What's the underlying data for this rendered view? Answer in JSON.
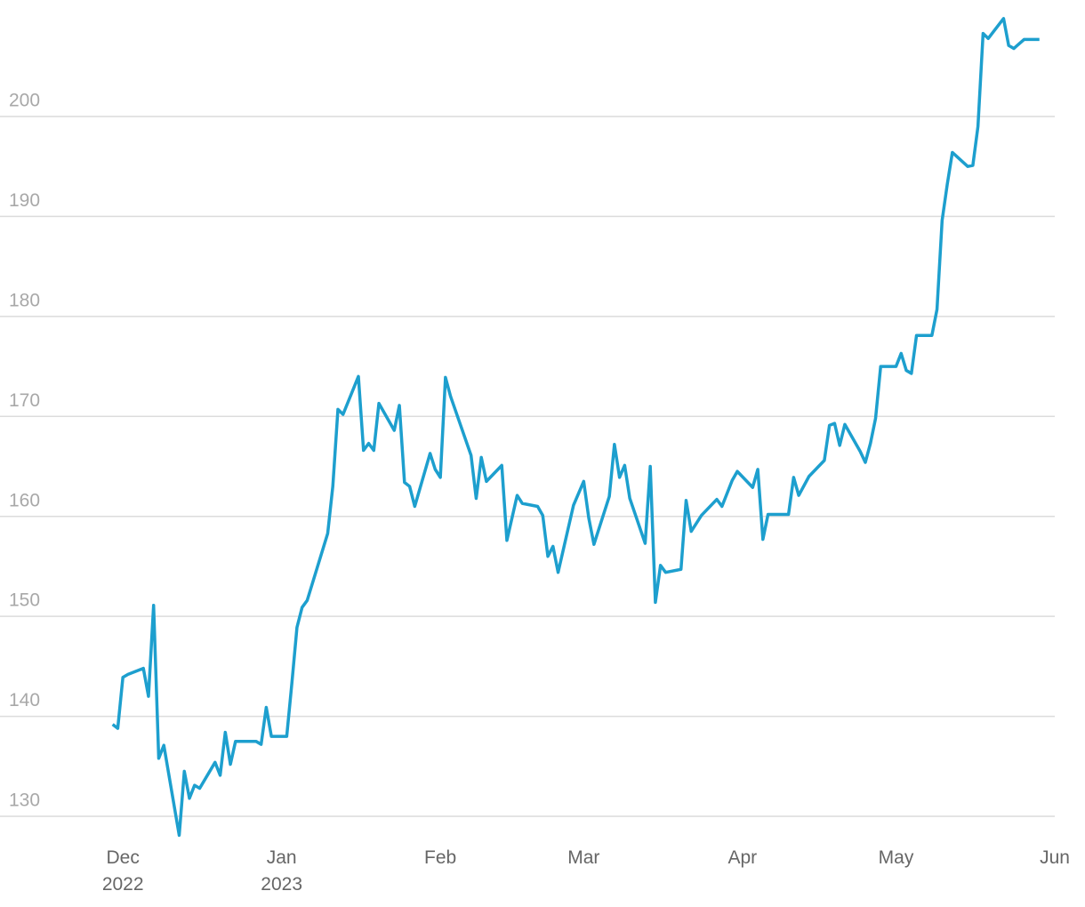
{
  "chart_data": {
    "type": "line",
    "x": [
      "2022-11-29",
      "2022-11-30",
      "2022-12-01",
      "2022-12-02",
      "2022-12-05",
      "2022-12-06",
      "2022-12-07",
      "2022-12-08",
      "2022-12-09",
      "2022-12-12",
      "2022-12-13",
      "2022-12-14",
      "2022-12-15",
      "2022-12-16",
      "2022-12-19",
      "2022-12-20",
      "2022-12-21",
      "2022-12-22",
      "2022-12-23",
      "2022-12-27",
      "2022-12-28",
      "2022-12-29",
      "2022-12-30",
      "2023-01-02",
      "2023-01-03",
      "2023-01-04",
      "2023-01-05",
      "2023-01-06",
      "2023-01-10",
      "2023-01-11",
      "2023-01-12",
      "2023-01-13",
      "2023-01-16",
      "2023-01-17",
      "2023-01-18",
      "2023-01-19",
      "2023-01-20",
      "2023-01-23",
      "2023-01-24",
      "2023-01-25",
      "2023-01-26",
      "2023-01-27",
      "2023-01-30",
      "2023-01-31",
      "2023-02-01",
      "2023-02-02",
      "2023-02-03",
      "2023-02-07",
      "2023-02-08",
      "2023-02-09",
      "2023-02-10",
      "2023-02-13",
      "2023-02-14",
      "2023-02-16",
      "2023-02-17",
      "2023-02-20",
      "2023-02-21",
      "2023-02-22",
      "2023-02-23",
      "2023-02-24",
      "2023-02-27",
      "2023-03-01",
      "2023-03-02",
      "2023-03-03",
      "2023-03-06",
      "2023-03-07",
      "2023-03-08",
      "2023-03-09",
      "2023-03-10",
      "2023-03-13",
      "2023-03-14",
      "2023-03-15",
      "2023-03-16",
      "2023-03-17",
      "2023-03-20",
      "2023-03-21",
      "2023-03-22",
      "2023-03-24",
      "2023-03-27",
      "2023-03-28",
      "2023-03-30",
      "2023-03-31",
      "2023-04-03",
      "2023-04-04",
      "2023-04-05",
      "2023-04-06",
      "2023-04-10",
      "2023-04-11",
      "2023-04-12",
      "2023-04-14",
      "2023-04-17",
      "2023-04-18",
      "2023-04-19",
      "2023-04-20",
      "2023-04-21",
      "2023-04-24",
      "2023-04-25",
      "2023-04-26",
      "2023-04-27",
      "2023-04-28",
      "2023-05-01",
      "2023-05-02",
      "2023-05-03",
      "2023-05-04",
      "2023-05-05",
      "2023-05-08",
      "2023-05-09",
      "2023-05-10",
      "2023-05-11",
      "2023-05-12",
      "2023-05-15",
      "2023-05-16",
      "2023-05-17",
      "2023-05-18",
      "2023-05-19",
      "2023-05-22",
      "2023-05-23",
      "2023-05-24",
      "2023-05-26",
      "2023-05-29"
    ],
    "series": [
      {
        "color": "#1d9fce",
        "values": [
          139.2,
          138.8,
          143.9,
          144.2,
          144.8,
          142.0,
          151.1,
          135.8,
          137.1,
          128.1,
          134.5,
          131.8,
          133.1,
          132.8,
          135.4,
          134.1,
          138.4,
          135.2,
          137.5,
          137.5,
          137.2,
          140.9,
          138.0,
          138.0,
          143.3,
          148.9,
          150.9,
          151.6,
          158.3,
          163.0,
          170.7,
          170.2,
          174.0,
          166.6,
          167.3,
          166.6,
          171.3,
          168.6,
          171.1,
          163.4,
          163.0,
          161.0,
          166.3,
          164.7,
          163.9,
          173.9,
          172.0,
          166.1,
          161.8,
          165.9,
          163.5,
          165.1,
          157.6,
          162.1,
          161.3,
          161.0,
          160.1,
          156.0,
          157.0,
          154.4,
          161.1,
          163.5,
          159.8,
          157.2,
          162.0,
          167.2,
          163.9,
          165.1,
          161.8,
          157.3,
          165.0,
          151.4,
          155.1,
          154.4,
          154.7,
          161.6,
          158.5,
          160.1,
          161.7,
          161.0,
          163.6,
          164.5,
          162.9,
          164.7,
          157.7,
          160.2,
          160.2,
          163.9,
          162.1,
          164.0,
          165.6,
          169.1,
          169.3,
          167.1,
          169.2,
          166.5,
          165.4,
          167.3,
          169.8,
          175.0,
          175.0,
          176.3,
          174.6,
          174.3,
          178.1,
          178.1,
          180.7,
          189.6,
          193.2,
          196.4,
          195.0,
          195.1,
          199.0,
          208.3,
          207.8,
          209.8,
          207.1,
          206.8,
          207.7,
          207.7
        ]
      }
    ],
    "xlim": [
      "2022-11-07",
      "2023-06-01"
    ],
    "xticks": [
      {
        "value": "2022-12",
        "label": "Dec\n2022"
      },
      {
        "value": "2023-01",
        "label": "Jan\n2023"
      },
      {
        "value": "2023-02",
        "label": "Feb"
      },
      {
        "value": "2023-03",
        "label": "Mar"
      },
      {
        "value": "2023-04",
        "label": "Apr"
      },
      {
        "value": "2023-05",
        "label": "May"
      },
      {
        "value": "2023-06",
        "label": "Jun"
      }
    ],
    "ylim": [
      128,
      211.65
    ],
    "yticks": [
      130,
      140,
      150,
      160,
      170,
      180,
      190,
      200
    ],
    "grid": true
  }
}
